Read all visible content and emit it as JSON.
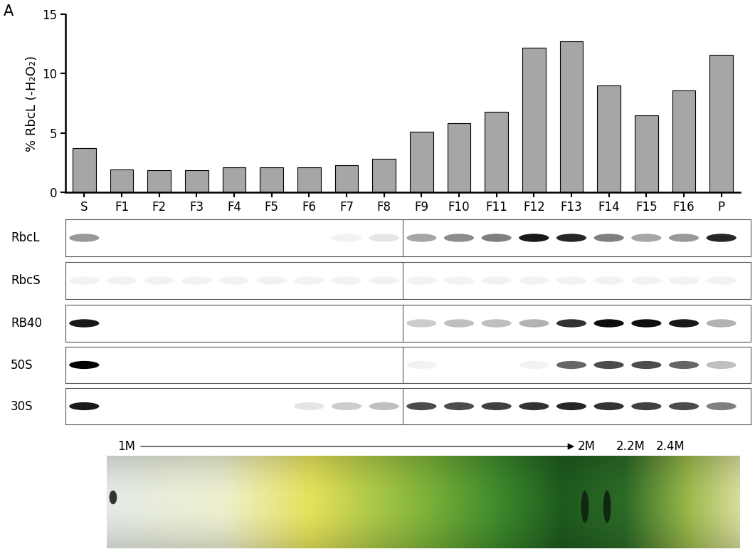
{
  "panel_label": "A",
  "chart_data": {
    "type": "bar",
    "ylabel": "% RbcL (-H₂O₂)",
    "categories": [
      "S",
      "F1",
      "F2",
      "F3",
      "F4",
      "F5",
      "F6",
      "F7",
      "F8",
      "F9",
      "F10",
      "F11",
      "F12",
      "F13",
      "F14",
      "F15",
      "F16",
      "P"
    ],
    "values": [
      3.7,
      1.9,
      1.85,
      1.85,
      2.1,
      2.1,
      2.1,
      2.3,
      2.8,
      5.1,
      5.8,
      6.8,
      12.2,
      12.7,
      9.0,
      6.5,
      8.6,
      11.6
    ],
    "color": "#a6a6a6",
    "ylim": [
      0,
      15
    ],
    "yticks": [
      0,
      5,
      10,
      15
    ],
    "grid": false
  },
  "blots": [
    {
      "label": "RbcL",
      "intensities": [
        0.4,
        0,
        0,
        0,
        0,
        0,
        0,
        0.05,
        0.1,
        0.35,
        0.45,
        0.5,
        0.9,
        0.85,
        0.5,
        0.35,
        0.4,
        0.85
      ]
    },
    {
      "label": "RbcS",
      "intensities": [
        0.05,
        0.05,
        0.05,
        0.05,
        0.05,
        0.05,
        0.05,
        0.05,
        0.05,
        0.05,
        0.05,
        0.05,
        0.05,
        0.05,
        0.05,
        0.05,
        0.05,
        0.05
      ]
    },
    {
      "label": "RB40",
      "intensities": [
        0.9,
        0,
        0,
        0,
        0,
        0,
        0,
        0,
        0,
        0.2,
        0.25,
        0.25,
        0.3,
        0.8,
        0.95,
        0.95,
        0.9,
        0.3
      ]
    },
    {
      "label": "50S",
      "intensities": [
        1.0,
        0,
        0,
        0,
        0,
        0,
        0,
        0,
        0,
        0.05,
        0,
        0,
        0.05,
        0.6,
        0.7,
        0.7,
        0.6,
        0.25
      ]
    },
    {
      "label": "30S",
      "intensities": [
        0.9,
        0,
        0,
        0,
        0,
        0,
        0.1,
        0.2,
        0.25,
        0.7,
        0.7,
        0.75,
        0.8,
        0.85,
        0.8,
        0.75,
        0.7,
        0.5
      ]
    }
  ],
  "gradient": {
    "start_label": "1M",
    "end_labels": [
      "2M",
      "2.2M",
      "2.4M"
    ]
  }
}
